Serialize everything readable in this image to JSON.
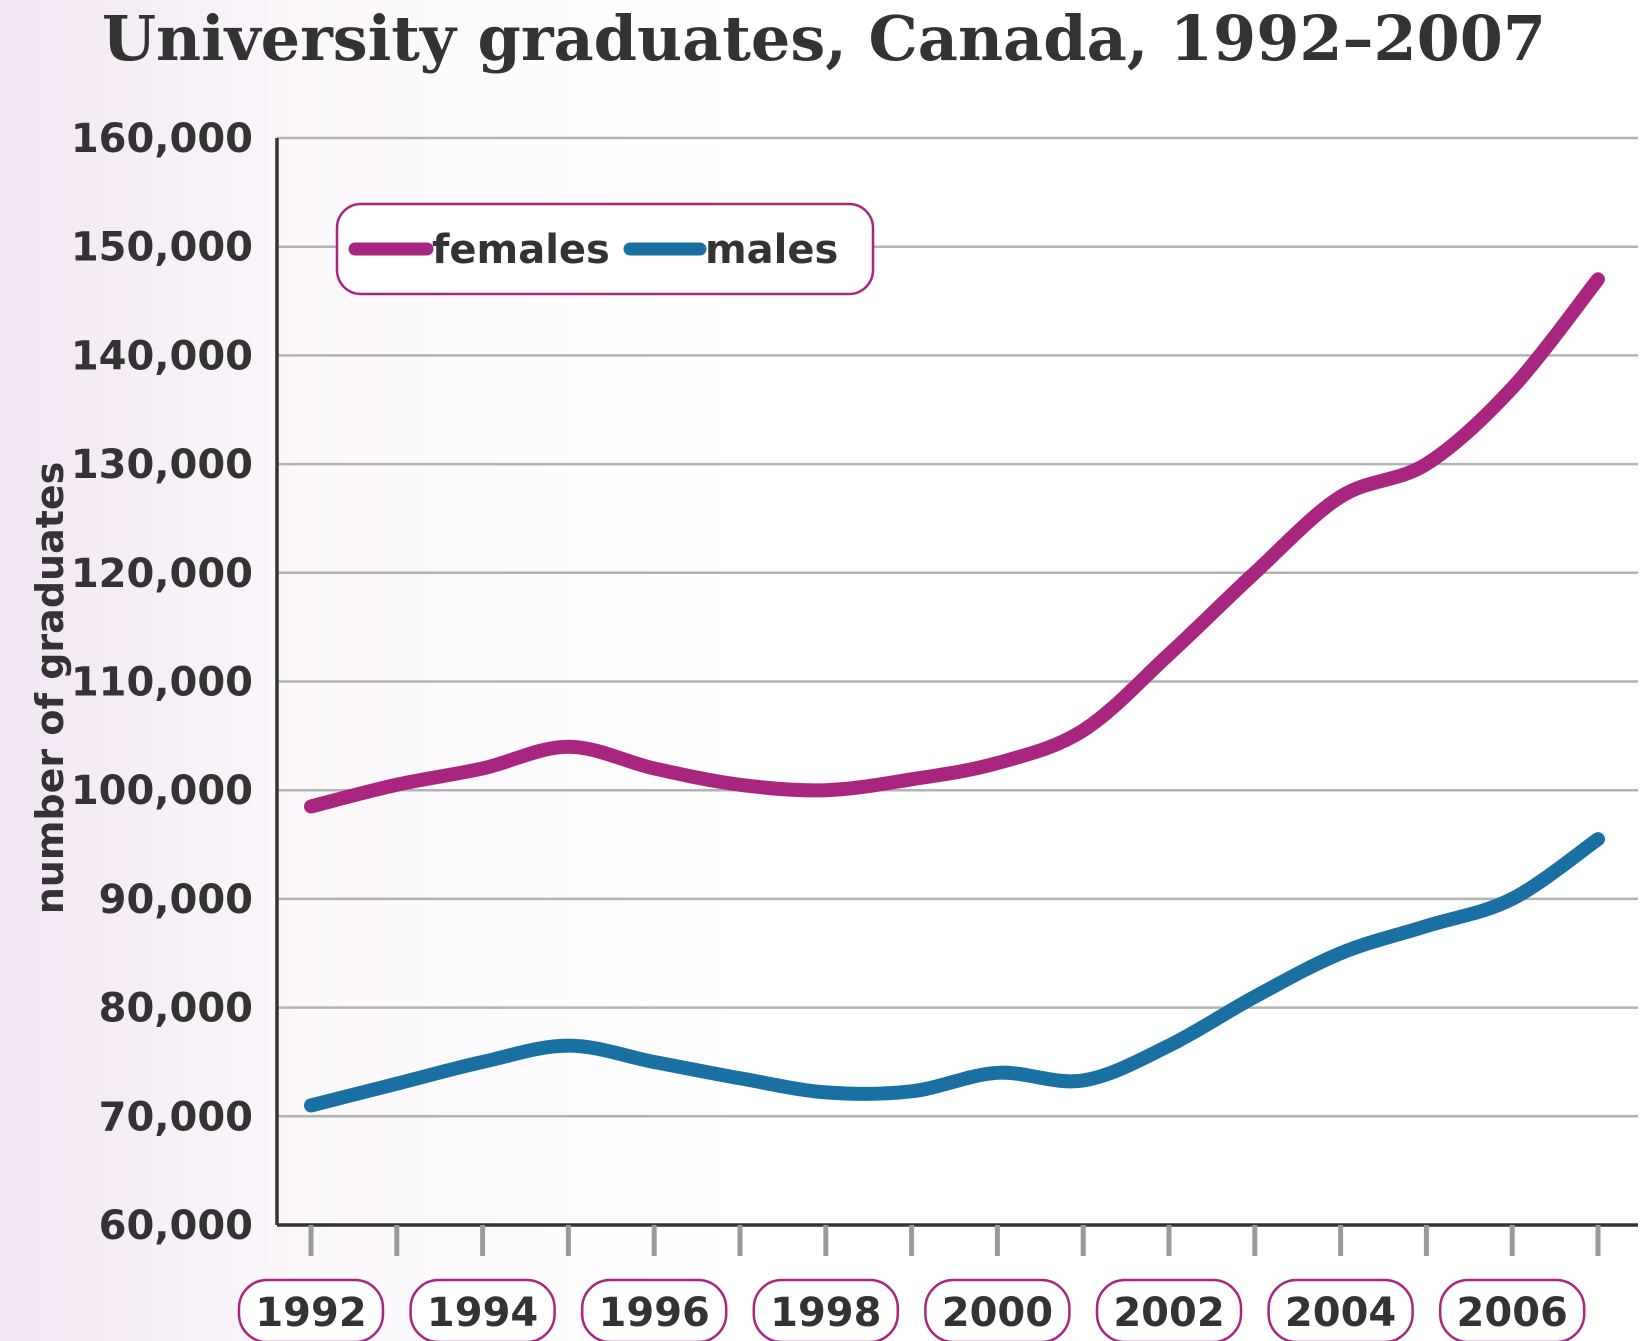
{
  "chart_data": {
    "type": "line",
    "title": "University graduates, Canada, 1992–2007",
    "ylabel": "number of graduates",
    "xlabel": "",
    "x": [
      1992,
      1993,
      1994,
      1995,
      1996,
      1997,
      1998,
      1999,
      2000,
      2001,
      2002,
      2003,
      2004,
      2005,
      2006,
      2007
    ],
    "x_tick_labels": [
      "1992",
      "1994",
      "1996",
      "1998",
      "2000",
      "2002",
      "2004",
      "2006"
    ],
    "y_tick_labels": [
      "60,000",
      "70,000",
      "80,000",
      "90,000",
      "100,000",
      "110,000",
      "120,000",
      "130,000",
      "140,000",
      "150,000",
      "160,000"
    ],
    "ylim": [
      60000,
      160000
    ],
    "grid": true,
    "legend": "top-left",
    "series": [
      {
        "name": "females",
        "color": "#a8267f",
        "values": [
          98500,
          100500,
          102000,
          104000,
          102000,
          100500,
          100000,
          101000,
          102500,
          105500,
          112500,
          120000,
          127000,
          130000,
          137000,
          147000
        ]
      },
      {
        "name": "males",
        "color": "#1a6fa3",
        "values": [
          71000,
          73000,
          75000,
          76500,
          75000,
          73500,
          72200,
          72300,
          74000,
          73300,
          76500,
          81000,
          85000,
          87500,
          90000,
          95500
        ]
      }
    ]
  }
}
